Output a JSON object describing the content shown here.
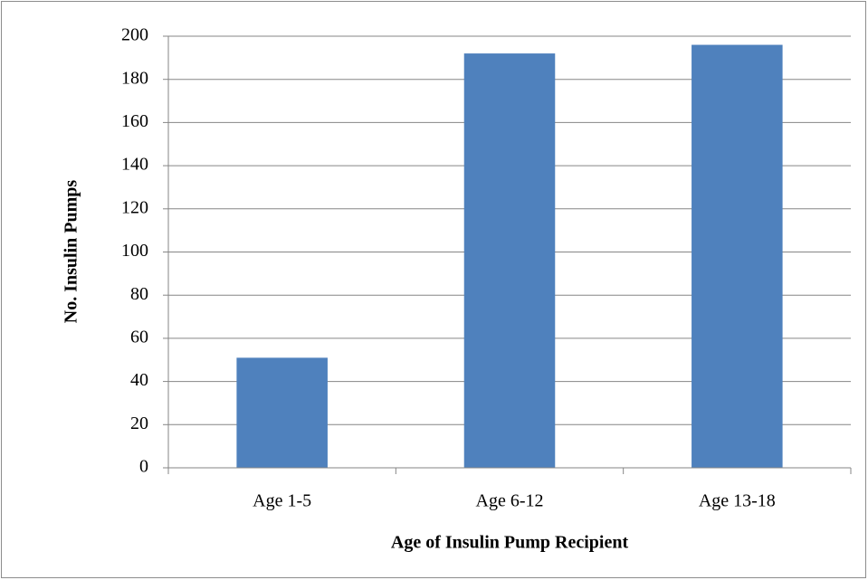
{
  "chart_data": {
    "type": "bar",
    "categories": [
      "Age 1-5",
      "Age 6-12",
      "Age 13-18"
    ],
    "values": [
      51,
      192,
      196
    ],
    "color": "#4f81bd",
    "xlabel": "Age of Insulin Pump Recipient",
    "ylabel": "No. Insulin Pumps",
    "ylim": [
      0,
      200
    ],
    "yticks": [
      0,
      20,
      40,
      60,
      80,
      100,
      120,
      140,
      160,
      180,
      200
    ],
    "grid": true
  }
}
